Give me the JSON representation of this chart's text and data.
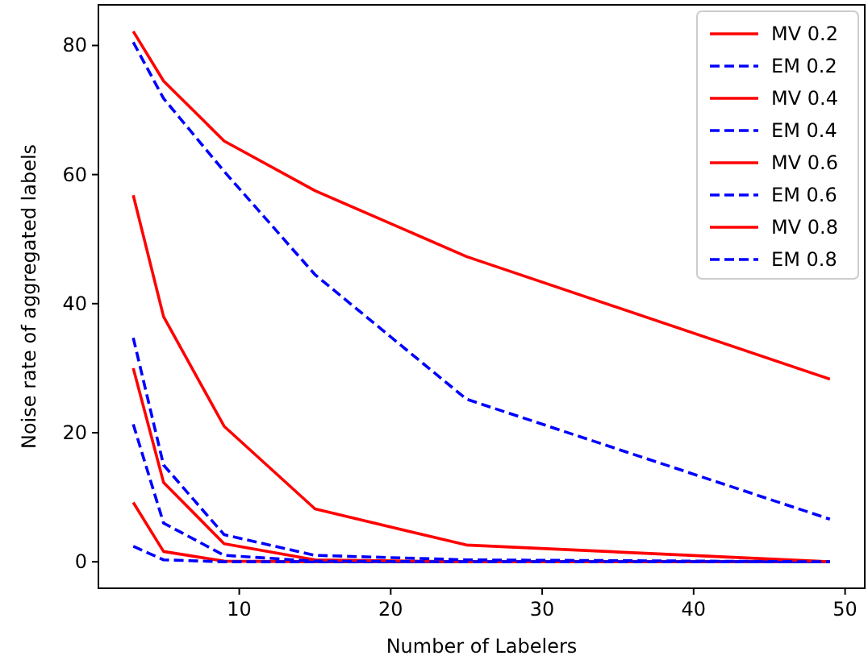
{
  "chart_data": {
    "type": "line",
    "xlabel": "Number of Labelers",
    "ylabel": "Noise rate of aggregated labels",
    "x": [
      3,
      5,
      9,
      15,
      25,
      49
    ],
    "xlim": [
      0.7,
      51.3
    ],
    "ylim": [
      -4.1,
      86.3
    ],
    "xticks": [
      10,
      20,
      30,
      40,
      50
    ],
    "yticks": [
      0,
      20,
      40,
      60,
      80
    ],
    "legend": "top right",
    "grid": false,
    "series": [
      {
        "name": "MV 0.2",
        "color": "#ff0000",
        "line_style": "solid",
        "values": [
          9.2,
          1.6,
          0.1,
          0,
          0,
          0
        ]
      },
      {
        "name": "EM 0.2",
        "color": "#0000ff",
        "line_style": "dashed",
        "values": [
          2.4,
          0.3,
          0,
          0,
          0,
          0
        ]
      },
      {
        "name": "MV 0.4",
        "color": "#ff0000",
        "line_style": "solid",
        "values": [
          30,
          12.3,
          2.8,
          0.3,
          0,
          0
        ]
      },
      {
        "name": "EM 0.4",
        "color": "#0000ff",
        "line_style": "dashed",
        "values": [
          21.3,
          6,
          1,
          0.1,
          0,
          0
        ]
      },
      {
        "name": "MV 0.6",
        "color": "#ff0000",
        "line_style": "solid",
        "values": [
          56.8,
          38,
          21,
          8.2,
          2.6,
          0
        ]
      },
      {
        "name": "EM 0.6",
        "color": "#0000ff",
        "line_style": "dashed",
        "values": [
          34.7,
          15,
          4.2,
          1,
          0.3,
          0
        ]
      },
      {
        "name": "MV 0.8",
        "color": "#ff0000",
        "line_style": "solid",
        "values": [
          82.2,
          74.5,
          65.2,
          57.5,
          47.3,
          28.3
        ]
      },
      {
        "name": "EM 0.8",
        "color": "#0000ff",
        "line_style": "dashed",
        "values": [
          80.5,
          71.8,
          60.5,
          44.5,
          25.2,
          6.6
        ]
      }
    ]
  }
}
